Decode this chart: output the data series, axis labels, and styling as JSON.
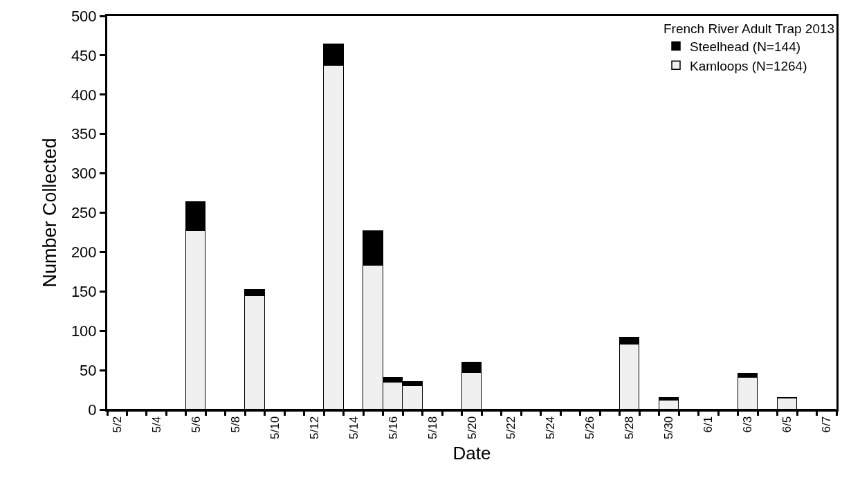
{
  "chart_data": {
    "type": "bar",
    "xlabel": "Date",
    "ylabel": "Number Collected",
    "legend_title": "French River Adult Trap 2013",
    "categories": [
      "5/2",
      null,
      "5/4",
      null,
      "5/6",
      null,
      "5/8",
      null,
      "5/10",
      null,
      "5/12",
      null,
      "5/14",
      null,
      "5/16",
      null,
      "5/18",
      null,
      "5/20",
      null,
      "5/22",
      null,
      "5/24",
      null,
      "5/26",
      null,
      "5/28",
      null,
      "5/30",
      null,
      "6/1",
      null,
      "6/3",
      null,
      "6/5",
      null,
      "6/7"
    ],
    "stacked": true,
    "series": [
      {
        "name": "Kamloops (N=1264)",
        "color": "#f0f0f0",
        "values": [
          0,
          0,
          0,
          0,
          227,
          0,
          0,
          144,
          0,
          0,
          0,
          437,
          0,
          183,
          34,
          30,
          0,
          0,
          47,
          0,
          0,
          0,
          0,
          0,
          0,
          0,
          83,
          0,
          11,
          0,
          0,
          0,
          40,
          0,
          14,
          0,
          0
        ]
      },
      {
        "name": "Steelhead (N=144)",
        "color": "#000000",
        "values": [
          0,
          0,
          0,
          0,
          37,
          0,
          0,
          8,
          0,
          0,
          0,
          27,
          0,
          44,
          6,
          5,
          0,
          0,
          13,
          0,
          0,
          0,
          0,
          0,
          0,
          0,
          8,
          0,
          4,
          0,
          0,
          0,
          6,
          0,
          1,
          0,
          0
        ]
      }
    ],
    "ylim": [
      0,
      500
    ],
    "yticks": [
      0,
      50,
      100,
      150,
      200,
      250,
      300,
      350,
      400,
      450,
      500
    ],
    "grid": false,
    "legend": "top right"
  }
}
